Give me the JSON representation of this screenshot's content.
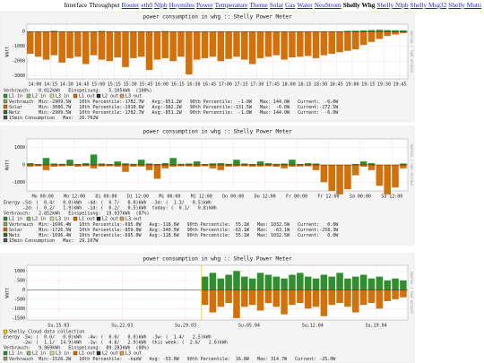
{
  "nav": {
    "label": "Interface Throughput",
    "links": [
      {
        "text": "Router"
      },
      {
        "text": "eth0"
      },
      {
        "text": "Nlpb"
      },
      {
        "text": "Hoymiles"
      },
      {
        "text": "Power"
      },
      {
        "text": "Temperature"
      },
      {
        "text": "Theme"
      },
      {
        "text": "Solar"
      },
      {
        "text": "Gas"
      },
      {
        "text": "Water"
      },
      {
        "text": "NeuStrom"
      },
      {
        "text": "Shelly Whg",
        "current": true
      },
      {
        "text": "Shelly Nlpb"
      },
      {
        "text": "Shelly Msg32"
      },
      {
        "text": "Shelly Mutti"
      }
    ]
  },
  "watermark": "RRDTOOL / TOBI OETIKER",
  "graphs": [
    {
      "type": "bar",
      "title": "power consumption in whg :: Shelly Power Meter",
      "ylabel": "Watt",
      "ylim": [
        -3200,
        500
      ],
      "yticks": [
        0,
        -1000,
        -2000,
        -3000
      ],
      "xticks": [
        "14:00",
        "14:15",
        "14:30",
        "14:45",
        "15:00",
        "15:15",
        "15:30",
        "15:45",
        "16:00",
        "16:15",
        "16:30",
        "16:45",
        "17:00",
        "17:15",
        "17:30",
        "17:45",
        "18:00",
        "18:15",
        "18:30",
        "18:45",
        "19:00",
        "19:15",
        "19:30",
        "19:45"
      ],
      "notes": [
        "Verbrauch:   0.012kWh   Einspeisung:   5.105kWh  (100%)"
      ],
      "series": [
        {
          "name": "L1 in",
          "color": "#2f8f2f",
          "values": [
            0,
            0,
            0,
            50,
            0,
            0,
            0,
            0,
            0,
            40,
            0,
            0,
            0,
            0,
            0,
            0,
            0,
            30,
            0,
            0,
            0,
            0,
            0,
            0,
            0,
            0,
            0,
            0,
            0,
            0,
            0,
            0,
            0,
            0,
            0,
            0,
            0,
            0,
            0,
            0,
            50,
            60,
            80,
            100,
            120,
            100,
            90,
            80
          ]
        },
        {
          "name": "L2 in",
          "color": "#8fbf5f"
        },
        {
          "name": "L3 in",
          "color": "#c8e0a0"
        },
        {
          "name": "L1 out",
          "color": "#d2700a",
          "values": [
            -1500,
            -1700,
            -1900,
            -1600,
            -2100,
            -1800,
            -1700,
            -2200,
            -1600,
            -1900,
            -2000,
            -1750,
            -2400,
            -1800,
            -1700,
            -2600,
            -1900,
            -1800,
            -2000,
            -1700,
            -2900,
            -1900,
            -1800,
            -1700,
            -2000,
            -1850,
            -1700,
            -1900,
            -2200,
            -1800,
            -1700,
            -1600,
            -1900,
            -1750,
            -1700,
            -1650,
            -1800,
            -1600,
            -1500,
            -1400,
            -1300,
            -1200,
            -900,
            -700,
            -500,
            -300,
            -200,
            -100
          ]
        },
        {
          "name": "L2 out",
          "color": "#333333"
        },
        {
          "name": "L3 out",
          "color": "#e0a050"
        }
      ],
      "stats": [
        {
          "color": "#8fa070",
          "label": "Verbrauch",
          "text": "  Min:-2909.5W   10th Percentile:-1782.7W   Avg:-851.2W   90th Percentile:  -1.0W   Max: 144.0W   Current:  -6.0W"
        },
        {
          "color": "#d2700a",
          "label": "Solar",
          "text": "      Min:-3080.7W   10th Percentile:-1910.6W   Avg:-982.2W   90th Percentile:-131.5W   Max:  -6.0W   Current:-272.5W"
        },
        {
          "color": "#2f6f2f",
          "label": "Netz",
          "text": "       Min:-2909.5W   10th Percentile:-1782.7W   Avg:-851.2W   90th Percentile:  -1.0W   Max: 144.0W   Current:  -6.0W"
        },
        {
          "color": "#555555",
          "label": "15min Consumption",
          "text": "   Max:  26.702W"
        }
      ]
    },
    {
      "type": "bar",
      "title": "power consumption in whg :: Shelly Power Meter",
      "ylabel": "Watt",
      "ylim": [
        -1500,
        1500
      ],
      "yticks": [
        1000,
        0,
        -1000
      ],
      "xticks": [
        "Mo 00:00",
        "Mo 12:00",
        "Di 00:00",
        "Di 12:00",
        "Mi 00:00",
        "Mi 12:00",
        "Do 00:00",
        "Do 12:00",
        "Fr 00:00",
        "Fr 12:00",
        "Sa 00:00",
        "Sa 12:00"
      ],
      "notes": [
        "Energy -5d: (  0.4/   0.0)kWh  -4d: (  0.7/   0.0)kWh  -3d: (  1.3/   0.5)kWh",
        "       -2d: (  0.2/   1.9)kWh  -1d: (  0.2/   0.5)kWh  today: (  0.1/   0.8)kWh",
        "Verbrauch:   2.852kWh   Einspeisung:  19.937kWh  (87%)"
      ],
      "series": [
        {
          "name": "L1 in",
          "color": "#2f8f2f",
          "values": [
            100,
            50,
            400,
            80,
            60,
            300,
            50,
            100,
            600,
            80,
            50,
            200,
            90,
            60,
            300,
            80,
            50,
            100,
            400,
            60,
            80,
            200,
            50,
            90,
            100,
            60,
            300,
            80,
            50,
            200,
            100,
            60,
            80,
            300,
            50,
            100,
            80,
            0,
            0,
            0,
            0,
            50,
            200,
            100,
            0,
            0,
            0,
            80
          ]
        },
        {
          "name": "L2 in",
          "color": "#8fbf5f"
        },
        {
          "name": "L3 in",
          "color": "#c8e0a0"
        },
        {
          "name": "L1 out",
          "color": "#d2700a",
          "values": [
            -100,
            -80,
            -300,
            -100,
            -80,
            -60,
            -100,
            -80,
            -200,
            -90,
            -80,
            -100,
            -400,
            -100,
            -90,
            -300,
            -800,
            -200,
            -100,
            -80,
            -90,
            -100,
            -80,
            -200,
            -300,
            -100,
            -90,
            -80,
            -100,
            -90,
            -80,
            -100,
            -200,
            -100,
            -90,
            -80,
            -300,
            -1000,
            -1500,
            -1700,
            -1400,
            -600,
            -100,
            -300,
            -1200,
            -1700,
            -1300,
            -200
          ]
        },
        {
          "name": "L2 out",
          "color": "#333333"
        },
        {
          "name": "L3 out",
          "color": "#e0a050"
        }
      ],
      "stats": [
        {
          "color": "#8fa070",
          "label": "Verbrauch",
          "text": "  Min:-1696.4W   10th Percentile:-695.0W   Avg:-118.6W   90th Percentile:  55.1W   Max: 1032.5W   Current:   0.0W"
        },
        {
          "color": "#d2700a",
          "label": "Solar",
          "text": "      Min:-1726.5W   10th Percentile:-859.0W   Avg:-340.5W   90th Percentile: -63.1W   Max:  -63.1W   Current:-258.3W"
        },
        {
          "color": "#2f6f2f",
          "label": "Netz",
          "text": "       Min:-1696.4W   10th Percentile:-695.0W   Avg:-118.6W   90th Percentile:  55.1W   Max: 1032.5W   Current:   0.0W"
        },
        {
          "color": "#555555",
          "label": "15min Consumption",
          "text": "   Max:  29.107W"
        }
      ]
    },
    {
      "type": "bar",
      "title": "power consumption in whg :: Shelly Power Meter",
      "ylabel": "Watt",
      "ylim": [
        -1600,
        1300
      ],
      "yticks": [
        1000,
        500,
        0,
        -500,
        -1000,
        -1500
      ],
      "xticks": [
        "Su,15.03",
        "Su,22.03",
        "Su,29.03",
        "Su,05.04",
        "Su,12.04",
        "Su,19.04"
      ],
      "marker": {
        "color": "#e8d000",
        "label": "Shelly Cloud data collection"
      },
      "notes": [
        "Energy -5w: (  0.0/   0.0)kWh  -4w: (  0.0/   0.0)kWh  -3w: (  1.4/   2.5)kWh",
        "       -2w: (  1.1/  14.9)kWh  -1w: (  4.8/   2.9)kWh  this week: (  2.6/   2.6)kWh",
        "Verbrauch:   9.969kWh   Einspeisung:  89.283kWh  (80%)"
      ],
      "series": [
        {
          "name": "L1 in",
          "color": "#2f8f2f",
          "values": [
            null,
            null,
            null,
            null,
            null,
            null,
            null,
            null,
            null,
            null,
            null,
            null,
            null,
            null,
            null,
            null,
            null,
            null,
            null,
            null,
            null,
            null,
            700,
            900,
            600,
            800,
            1000,
            700,
            600,
            900,
            800,
            700,
            600,
            800,
            900,
            700,
            600,
            800,
            700,
            900,
            600,
            700,
            800,
            600,
            700,
            500,
            600,
            500
          ]
        },
        {
          "name": "L2 in",
          "color": "#8fbf5f"
        },
        {
          "name": "L3 in",
          "color": "#c8e0a0"
        },
        {
          "name": "L1 out",
          "color": "#d2700a",
          "values": [
            null,
            null,
            null,
            null,
            null,
            null,
            null,
            null,
            null,
            null,
            null,
            null,
            null,
            null,
            null,
            null,
            null,
            null,
            null,
            null,
            null,
            null,
            -800,
            -1200,
            -900,
            -700,
            -1500,
            -900,
            -800,
            -1100,
            -700,
            -900,
            -1300,
            -800,
            -700,
            -1000,
            -900,
            -1400,
            -800,
            -700,
            -900,
            -1200,
            -800,
            -700,
            -1000,
            -600,
            -500,
            -400
          ]
        },
        {
          "name": "L2 out",
          "color": "#333333"
        },
        {
          "name": "L3 out",
          "color": "#e0a050"
        }
      ],
      "stats": [
        {
          "color": "#8fa070",
          "label": "Verbrauch",
          "text": "  Min:-1520.2W   10th Percentile:  -nanW   Avg: -53.0W   90th Percentile:  16.8W   Max: 314.7W   Current: -25.0W"
        }
      ]
    }
  ]
}
